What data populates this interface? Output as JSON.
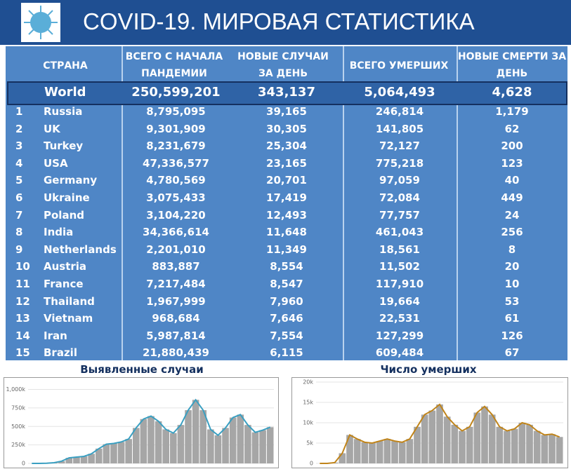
{
  "header": {
    "title": "COVID-19. МИРОВАЯ СТАТИСТИКА"
  },
  "table": {
    "columns": [
      "СТРАНА",
      "ВСЕГО С НАЧАЛА ПАНДЕМИИ",
      "НОВЫЕ СЛУЧАИ ЗА ДЕНЬ",
      "ВСЕГО УМЕРШИХ",
      "НОВЫЕ СМЕРТИ ЗА ДЕНЬ"
    ],
    "world": [
      "World",
      "250,599,201",
      "343,137",
      "5,064,493",
      "4,628"
    ],
    "rows": [
      [
        "1",
        "Russia",
        "8,795,095",
        "39,165",
        "246,814",
        "1,179"
      ],
      [
        "2",
        "UK",
        "9,301,909",
        "30,305",
        "141,805",
        "62"
      ],
      [
        "3",
        "Turkey",
        "8,231,679",
        "25,304",
        "72,127",
        "200"
      ],
      [
        "4",
        "USA",
        "47,336,577",
        "23,165",
        "775,218",
        "123"
      ],
      [
        "5",
        "Germany",
        "4,780,569",
        "20,701",
        "97,059",
        "40"
      ],
      [
        "6",
        "Ukraine",
        "3,075,433",
        "17,419",
        "72,084",
        "449"
      ],
      [
        "7",
        "Poland",
        "3,104,220",
        "12,493",
        "77,757",
        "24"
      ],
      [
        "8",
        "India",
        "34,366,614",
        "11,648",
        "461,043",
        "256"
      ],
      [
        "9",
        "Netherlands",
        "2,201,010",
        "11,349",
        "18,561",
        "8"
      ],
      [
        "10",
        "Austria",
        "883,887",
        "8,554",
        "11,502",
        "20"
      ],
      [
        "11",
        "France",
        "7,217,484",
        "8,547",
        "117,910",
        "10"
      ],
      [
        "12",
        "Thailand",
        "1,967,999",
        "7,960",
        "19,664",
        "53"
      ],
      [
        "13",
        "Vietnam",
        "968,684",
        "7,646",
        "22,531",
        "61"
      ],
      [
        "14",
        "Iran",
        "5,987,814",
        "7,554",
        "127,299",
        "126"
      ],
      [
        "15",
        "Brazil",
        "21,880,439",
        "6,115",
        "609,484",
        "67"
      ]
    ]
  },
  "chart_data": [
    {
      "type": "bar",
      "title": "Выявленные случаи",
      "ylim": [
        0,
        1100000
      ],
      "yticks": [
        {
          "value": 0,
          "label": "0"
        },
        {
          "value": 250000,
          "label": "250k"
        },
        {
          "value": 500000,
          "label": "500k"
        },
        {
          "value": 750000,
          "label": "750k"
        },
        {
          "value": 1000000,
          "label": "1,000k"
        }
      ],
      "series": [
        {
          "type": "bar",
          "color": "#a6a6a6",
          "values": [
            0,
            0,
            2000,
            10000,
            30000,
            75000,
            85000,
            95000,
            130000,
            200000,
            260000,
            270000,
            290000,
            330000,
            480000,
            600000,
            640000,
            570000,
            460000,
            410000,
            520000,
            720000,
            860000,
            720000,
            460000,
            380000,
            480000,
            620000,
            660000,
            520000,
            420000,
            450000,
            490000
          ]
        },
        {
          "type": "line",
          "color": "#3a9fc1",
          "values": [
            0,
            0,
            2000,
            10000,
            30000,
            75000,
            85000,
            95000,
            130000,
            200000,
            260000,
            270000,
            290000,
            330000,
            480000,
            600000,
            640000,
            570000,
            460000,
            410000,
            520000,
            720000,
            860000,
            720000,
            460000,
            380000,
            480000,
            620000,
            660000,
            520000,
            420000,
            450000,
            490000
          ]
        }
      ]
    },
    {
      "type": "bar",
      "title": "Число умерших",
      "ylim": [
        0,
        20000
      ],
      "yticks": [
        {
          "value": 0,
          "label": "0"
        },
        {
          "value": 5000,
          "label": "5k"
        },
        {
          "value": 10000,
          "label": "10k"
        },
        {
          "value": 15000,
          "label": "15k"
        },
        {
          "value": 20000,
          "label": "20k"
        }
      ],
      "series": [
        {
          "type": "bar",
          "color": "#a6a6a6",
          "values": [
            0,
            0,
            200,
            2500,
            7000,
            6000,
            5200,
            5000,
            5500,
            6000,
            5500,
            5200,
            6000,
            9000,
            12000,
            13000,
            14500,
            11500,
            9500,
            8000,
            9000,
            12500,
            14000,
            12000,
            9000,
            8000,
            8500,
            10000,
            9500,
            8000,
            7000,
            7200,
            6500
          ]
        },
        {
          "type": "line",
          "color": "#c0841a",
          "values": [
            0,
            0,
            200,
            2500,
            7000,
            6000,
            5200,
            5000,
            5500,
            6000,
            5500,
            5200,
            6000,
            9000,
            12000,
            13000,
            14500,
            11500,
            9500,
            8000,
            9000,
            12500,
            14000,
            12000,
            9000,
            8000,
            8500,
            10000,
            9500,
            8000,
            7000,
            7200,
            6500
          ]
        }
      ]
    }
  ]
}
